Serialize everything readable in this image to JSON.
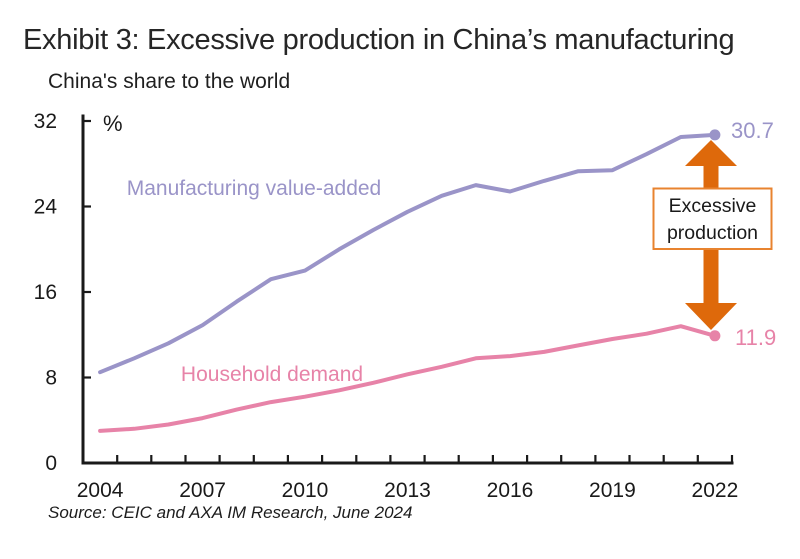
{
  "title": "Exhibit 3: Excessive production in China’s manufacturing",
  "subtitle": "China's share to the world",
  "unit_label": "%",
  "source": "Source: CEIC and AXA IM Research, June 2024",
  "colors": {
    "axis": "#1A1A1A",
    "manufacturing": "#9A94C8",
    "household": "#E783A8"
  },
  "annotation": {
    "line1": "Excessive",
    "line2": "production",
    "arrow_color": "#DE690B",
    "box_border_color": "#E8832F"
  },
  "chart_data": {
    "type": "line",
    "title": "China's share to the world",
    "ylabel": "%",
    "ylim": [
      0,
      32
    ],
    "y_ticks": [
      0,
      8,
      16,
      24,
      32
    ],
    "grid": false,
    "legend_position": "inline-labels",
    "x": [
      2004,
      2005,
      2006,
      2007,
      2008,
      2009,
      2010,
      2011,
      2012,
      2013,
      2014,
      2015,
      2016,
      2017,
      2018,
      2019,
      2020,
      2021,
      2022
    ],
    "x_tick_labels": [
      "2004",
      "2007",
      "2010",
      "2013",
      "2016",
      "2019",
      "2022"
    ],
    "series": [
      {
        "name": "Manufacturing value-added",
        "color": "#9A94C8",
        "end_label": "30.7",
        "values": [
          8.5,
          9.8,
          11.2,
          12.9,
          15.1,
          17.2,
          18.0,
          20.0,
          21.8,
          23.5,
          25.0,
          26.0,
          25.4,
          26.4,
          27.3,
          27.4,
          28.9,
          30.5,
          30.7
        ]
      },
      {
        "name": "Household demand",
        "color": "#E783A8",
        "end_label": "11.9",
        "values": [
          3.0,
          3.2,
          3.6,
          4.2,
          5.0,
          5.7,
          6.2,
          6.8,
          7.5,
          8.3,
          9.0,
          9.8,
          10.0,
          10.4,
          11.0,
          11.6,
          12.1,
          12.8,
          11.9
        ]
      }
    ]
  }
}
